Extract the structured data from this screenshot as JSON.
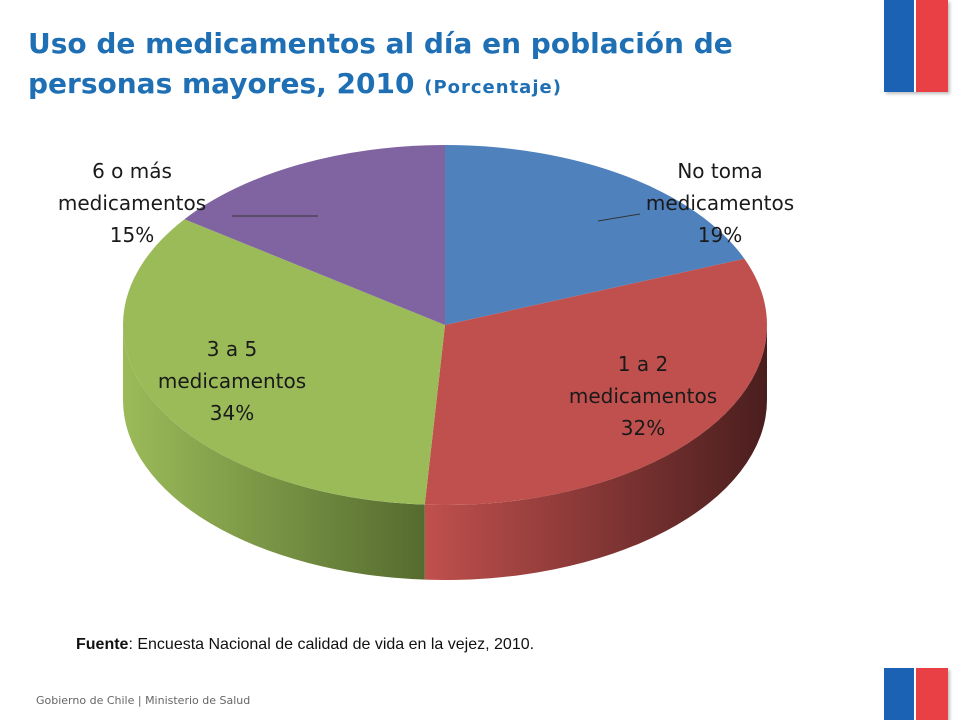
{
  "header": {
    "title": "Uso de medicamentos al día en población de personas mayores, 2010",
    "subtitle": "(Porcentaje)"
  },
  "chart_data": {
    "type": "pie",
    "style": "3d",
    "slices": [
      {
        "name": "No toma medicamentos",
        "label_lines": [
          "No toma",
          "medicamentos",
          "19%"
        ],
        "value": 19,
        "color": "#4f81bd",
        "side_color": "#233a5a"
      },
      {
        "name": "1 a 2 medicamentos",
        "label_lines": [
          "1 a 2",
          "medicamentos",
          "32%"
        ],
        "value": 32,
        "color": "#c0504d",
        "side_color": "#4a1e1e"
      },
      {
        "name": "3 a 5 medicamentos",
        "label_lines": [
          "3 a 5",
          "medicamentos",
          "34%"
        ],
        "value": 34,
        "color": "#9bbb59",
        "side_color": "#556b2f"
      },
      {
        "name": "6 o más medicamentos",
        "label_lines": [
          "6 o más",
          "medicamentos",
          "15%"
        ],
        "value": 15,
        "color": "#8064a2",
        "side_color": "#3f3052"
      }
    ]
  },
  "source": {
    "label": "Fuente",
    "text": ": Encuesta Nacional de calidad de vida en la vejez, 2010."
  },
  "footer": {
    "text": "Gobierno de Chile | Ministerio de Salud"
  }
}
